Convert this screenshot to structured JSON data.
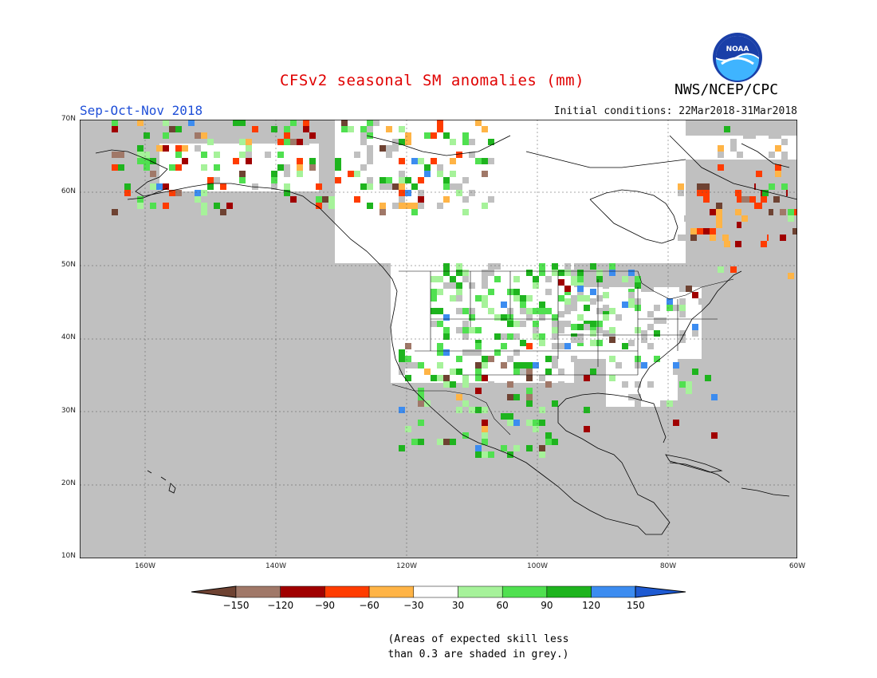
{
  "title": "CFSv2 seasonal SM anomalies (mm)",
  "season": "Sep-Oct-Nov 2018",
  "initial_conditions": "Initial conditions: 22Mar2018-31Mar2018",
  "agency": "NWS/NCEP/CPC",
  "logo_text": "NOAA",
  "map": {
    "lon_range": [
      -172,
      -60
    ],
    "lat_range": [
      10,
      70
    ],
    "lat_ticks": [
      "70N",
      "60N",
      "50N",
      "40N",
      "30N",
      "20N",
      "10N"
    ],
    "lon_ticks": [
      "160W",
      "140W",
      "120W",
      "100W",
      "80W",
      "60W"
    ],
    "grey_color": "#c0c0c0",
    "ocean_color": "#c0c0c0"
  },
  "legend": {
    "labels": [
      "-150",
      "-120",
      "-90",
      "-60",
      "-30",
      "30",
      "60",
      "90",
      "120",
      "150"
    ],
    "colors": [
      "#6e4232",
      "#a07868",
      "#a00000",
      "#ff3c00",
      "#ffb446",
      "#ffffff",
      "#a6f29a",
      "#50e050",
      "#1eb41e",
      "#3c8cf0",
      "#1e5ad2"
    ]
  },
  "footnote": [
    "(Areas of expected skill less",
    "than 0.3 are shaded in grey.)"
  ]
}
